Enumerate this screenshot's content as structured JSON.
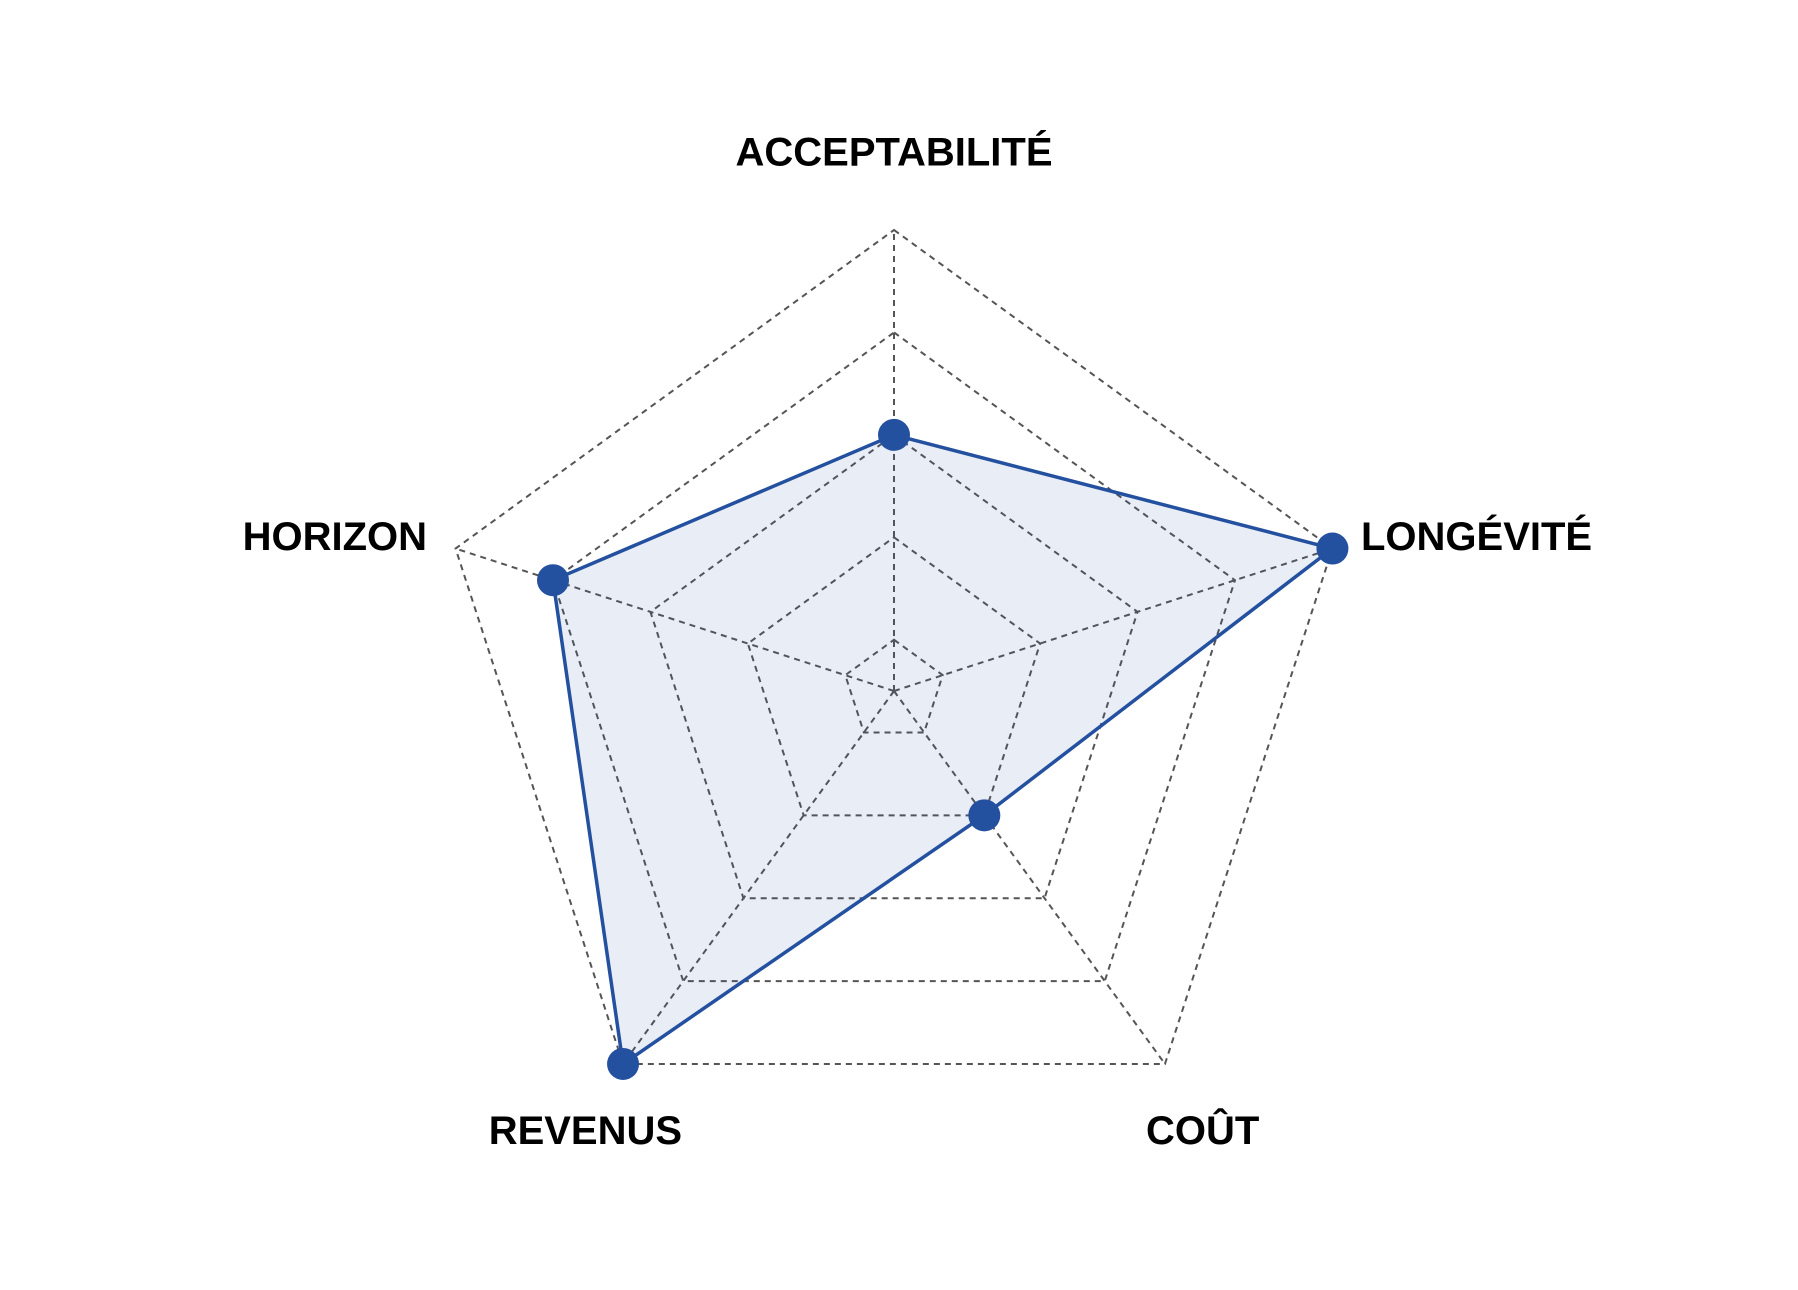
{
  "chart_data": {
    "type": "radar",
    "categories": [
      "ACCEPTABILITÉ",
      "LONGÉVITÉ",
      "COÛT",
      "REVENUS",
      "HORIZON"
    ],
    "values": [
      3,
      5,
      2,
      5,
      4
    ],
    "color": "#2450a0",
    "rlim": [
      0.5,
      5
    ],
    "rticks": [
      1,
      2,
      3,
      4,
      5
    ],
    "grid": true
  }
}
